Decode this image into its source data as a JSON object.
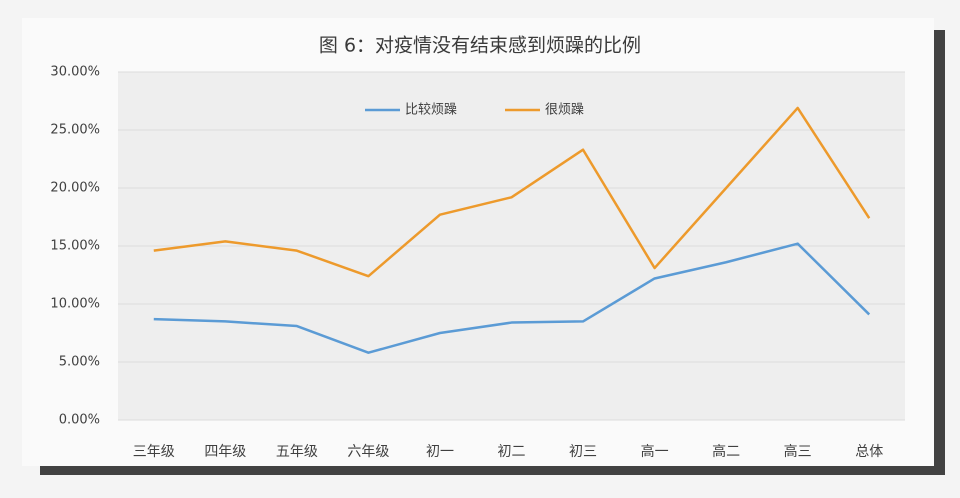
{
  "chart_data": {
    "type": "line",
    "title": "图 6：对疫情没有结束感到烦躁的比例",
    "categories": [
      "三年级",
      "四年级",
      "五年级",
      "六年级",
      "初一",
      "初二",
      "初三",
      "高一",
      "高二",
      "高三",
      "总体"
    ],
    "series": [
      {
        "name": "比较烦躁",
        "color": "#5b9bd5",
        "values": [
          8.7,
          8.5,
          8.1,
          5.8,
          7.5,
          8.4,
          8.5,
          12.2,
          13.6,
          15.2,
          9.1
        ]
      },
      {
        "name": "很烦躁",
        "color": "#ed9a2c",
        "values": [
          14.6,
          15.4,
          14.6,
          12.4,
          17.7,
          19.2,
          23.3,
          13.1,
          20.0,
          26.9,
          17.4
        ]
      }
    ],
    "ylim": [
      0,
      30
    ],
    "yticks": [
      {
        "value": 0,
        "label": "0.00%"
      },
      {
        "value": 5,
        "label": "5.00%"
      },
      {
        "value": 10,
        "label": "10.00%"
      },
      {
        "value": 15,
        "label": "15.00%"
      },
      {
        "value": 20,
        "label": "20.00%"
      },
      {
        "value": 25,
        "label": "25.00%"
      },
      {
        "value": 30,
        "label": "30.00%"
      }
    ],
    "grid": true,
    "legend": "top"
  }
}
